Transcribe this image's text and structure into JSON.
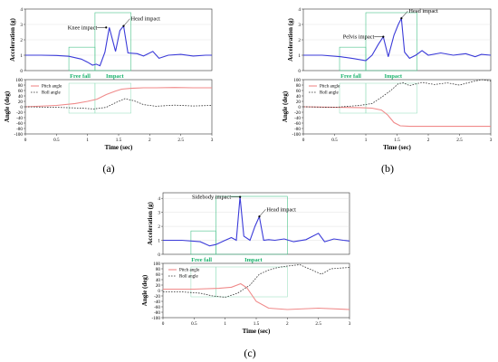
{
  "captions": [
    "(a)",
    "(b)",
    "(c)"
  ],
  "chart_data": [
    {
      "type": "line",
      "panel": "(a)",
      "acc": {
        "ylabel": "Acceleration (g)",
        "yticks": [
          0,
          1,
          2,
          3,
          4
        ],
        "ylim": [
          0,
          4
        ],
        "series": [
          {
            "x": [
              0,
              0.25,
              0.5,
              0.7,
              0.9,
              1.0,
              1.08,
              1.14,
              1.2,
              1.28,
              1.35,
              1.45,
              1.52,
              1.58,
              1.65,
              1.8,
              1.9,
              2.05,
              2.15,
              2.3,
              2.5,
              2.7,
              2.9,
              3.0
            ],
            "y": [
              1.0,
              1.0,
              0.98,
              0.93,
              0.75,
              0.55,
              0.35,
              0.42,
              0.32,
              1.2,
              2.8,
              1.25,
              2.6,
              2.9,
              1.15,
              1.1,
              0.95,
              1.25,
              0.8,
              1.0,
              1.05,
              0.95,
              1.0,
              1.0
            ]
          }
        ],
        "annotations": [
          {
            "text": "Knee impact",
            "x": 1.3,
            "y": 2.8
          },
          {
            "text": "Head impact",
            "x": 1.58,
            "y": 2.9
          }
        ],
        "phases": [
          {
            "label": "Free fall",
            "x0": 0.7,
            "x1": 1.12
          },
          {
            "label": "Impact",
            "x0": 1.12,
            "x1": 1.7
          }
        ]
      },
      "ang": {
        "ylabel": "Angle (deg)",
        "xlabel": "Time (sec)",
        "yticks": [
          100,
          80,
          60,
          40,
          20,
          0,
          -20,
          -40,
          -60,
          -80,
          -100
        ],
        "ylim": [
          -100,
          100
        ],
        "xticks": [
          0,
          0.5,
          1,
          1.5,
          2,
          2.5,
          3
        ],
        "series": [
          {
            "name": "Pitch angle",
            "x": [
              0,
              0.5,
              0.8,
              1.0,
              1.15,
              1.3,
              1.45,
              1.55,
              1.7,
              1.9,
              2.1,
              2.4,
              2.7,
              3.0
            ],
            "y": [
              0,
              5,
              12,
              20,
              28,
              45,
              58,
              65,
              68,
              70,
              70,
              71,
              70,
              70
            ]
          },
          {
            "name": "Roll angle",
            "x": [
              0,
              0.5,
              0.9,
              1.1,
              1.3,
              1.45,
              1.6,
              1.75,
              1.9,
              2.1,
              2.4,
              2.7,
              3.0
            ],
            "y": [
              0,
              -2,
              -5,
              -8,
              -2,
              15,
              30,
              22,
              8,
              2,
              6,
              3,
              5
            ]
          }
        ],
        "legend_position": "top-left"
      }
    },
    {
      "type": "line",
      "panel": "(b)",
      "acc": {
        "ylabel": "Acceleration (g)",
        "yticks": [
          0,
          1,
          2,
          3,
          4
        ],
        "ylim": [
          0,
          4
        ],
        "series": [
          {
            "x": [
              0,
              0.3,
              0.6,
              0.8,
              1.0,
              1.1,
              1.2,
              1.28,
              1.36,
              1.45,
              1.52,
              1.57,
              1.62,
              1.7,
              1.8,
              1.9,
              2.0,
              2.2,
              2.4,
              2.6,
              2.75,
              2.85,
              3.0
            ],
            "y": [
              1.0,
              1.0,
              0.9,
              0.78,
              0.65,
              1.0,
              1.7,
              2.2,
              0.9,
              2.3,
              3.0,
              3.4,
              1.2,
              0.8,
              1.0,
              1.3,
              1.0,
              1.15,
              1.0,
              1.1,
              0.9,
              1.05,
              1.0
            ]
          }
        ],
        "annotations": [
          {
            "text": "Pelvis impact",
            "x": 1.28,
            "y": 2.2
          },
          {
            "text": "Head impact",
            "x": 1.57,
            "y": 3.4
          }
        ],
        "phases": [
          {
            "label": "Free fall",
            "x0": 0.58,
            "x1": 1.0
          },
          {
            "label": "Impact",
            "x0": 1.0,
            "x1": 1.82
          }
        ]
      },
      "ang": {
        "ylabel": "Angle (deg)",
        "xlabel": "Time (sec)",
        "yticks": [
          100,
          80,
          60,
          40,
          20,
          0,
          -20,
          -40,
          -60,
          -80,
          -100
        ],
        "ylim": [
          -100,
          100
        ],
        "xticks": [
          0,
          0.5,
          1,
          1.5,
          2,
          2.5,
          3
        ],
        "series": [
          {
            "name": "Pitch angle",
            "x": [
              0,
              0.5,
              0.9,
              1.1,
              1.25,
              1.35,
              1.45,
              1.55,
              1.7,
              2.0,
              2.5,
              3.0
            ],
            "y": [
              0,
              -2,
              -3,
              -5,
              -12,
              -30,
              -58,
              -70,
              -72,
              -72,
              -72,
              -72
            ]
          },
          {
            "name": "Roll angle",
            "x": [
              0,
              0.5,
              0.9,
              1.1,
              1.25,
              1.4,
              1.52,
              1.6,
              1.7,
              1.9,
              2.1,
              2.3,
              2.5,
              2.7,
              2.85,
              3.0
            ],
            "y": [
              0,
              -2,
              5,
              12,
              35,
              60,
              85,
              88,
              78,
              90,
              82,
              88,
              80,
              92,
              100,
              95
            ]
          }
        ],
        "legend_position": "top-left"
      }
    },
    {
      "type": "line",
      "panel": "(c)",
      "acc": {
        "ylabel": "Acceleration (g)",
        "yticks": [
          0,
          1,
          2,
          3,
          4
        ],
        "ylim": [
          0,
          4.4
        ],
        "series": [
          {
            "x": [
              0,
              0.3,
              0.6,
              0.75,
              0.85,
              1.0,
              1.1,
              1.18,
              1.24,
              1.3,
              1.4,
              1.48,
              1.55,
              1.62,
              1.7,
              1.8,
              1.95,
              2.1,
              2.3,
              2.5,
              2.6,
              2.75,
              2.9,
              3.0
            ],
            "y": [
              1.0,
              1.0,
              0.9,
              0.6,
              0.7,
              1.0,
              1.2,
              1.0,
              4.1,
              1.3,
              1.0,
              2.0,
              2.7,
              1.0,
              1.05,
              1.0,
              1.1,
              0.9,
              1.05,
              1.5,
              0.9,
              1.1,
              1.0,
              0.95
            ]
          }
        ],
        "annotations": [
          {
            "text": "Sidebody impact",
            "x": 1.24,
            "y": 4.1
          },
          {
            "text": "Head impact",
            "x": 1.55,
            "y": 2.7
          }
        ],
        "phases": [
          {
            "label": "Free fall",
            "x0": 0.45,
            "x1": 0.85
          },
          {
            "label": "Impact",
            "x0": 0.85,
            "x1": 2.0
          }
        ]
      },
      "ang": {
        "ylabel": "Angle (deg)",
        "xlabel": "Time (sec)",
        "yticks": [
          100,
          80,
          60,
          40,
          20,
          0,
          -20,
          -40,
          -60,
          -80,
          -100
        ],
        "ylim": [
          -100,
          100
        ],
        "xticks": [
          0,
          0.5,
          1,
          1.5,
          2,
          2.5,
          3
        ],
        "series": [
          {
            "name": "Pitch angle",
            "x": [
              0,
              0.5,
              0.9,
              1.1,
              1.25,
              1.35,
              1.5,
              1.7,
              2.0,
              2.5,
              3.0
            ],
            "y": [
              5,
              5,
              8,
              12,
              25,
              10,
              -40,
              -65,
              -70,
              -65,
              -70
            ]
          },
          {
            "name": "Roll angle",
            "x": [
              0,
              0.3,
              0.6,
              0.8,
              1.0,
              1.2,
              1.4,
              1.55,
              1.7,
              1.85,
              2.0,
              2.2,
              2.4,
              2.55,
              2.7,
              3.0
            ],
            "y": [
              -5,
              -5,
              -10,
              -20,
              -25,
              -10,
              20,
              60,
              75,
              85,
              90,
              95,
              75,
              60,
              80,
              85
            ]
          }
        ],
        "legend_position": "top-left"
      }
    }
  ]
}
